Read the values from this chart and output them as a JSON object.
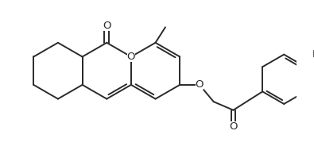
{
  "bg_color": "#ffffff",
  "line_color": "#2a2a2a",
  "line_width": 1.4,
  "fontsize_O": 9.5,
  "fontsize_Br": 9.5,
  "figsize": [
    3.95,
    1.89
  ],
  "dpi": 100,
  "xlim": [
    0.0,
    10.5
  ],
  "ylim": [
    -0.3,
    5.0
  ]
}
